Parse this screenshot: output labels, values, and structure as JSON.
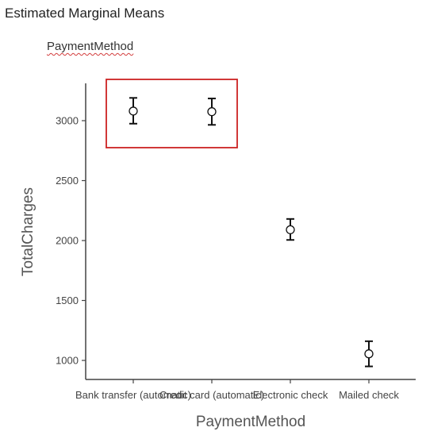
{
  "header": {
    "title": "Estimated Marginal Means",
    "subtitle": "PaymentMethod"
  },
  "colors": {
    "axis": "#444444",
    "error_bar": "#111111",
    "point_fill": "#ffffff",
    "highlight_box": "#cc2222"
  },
  "chart_data": {
    "type": "scatter",
    "xlabel": "PaymentMethod",
    "ylabel": "TotalCharges",
    "categories": [
      "Bank transfer (automatic)",
      "Credit card (automatic)",
      "Electronic check",
      "Mailed check"
    ],
    "series": [
      {
        "means": [
          3080,
          3075,
          2090,
          1055
        ],
        "lower": [
          2975,
          2965,
          2005,
          950
        ],
        "upper": [
          3190,
          3185,
          2180,
          1160
        ]
      }
    ],
    "ylim": [
      850,
      3300
    ],
    "yticks": [
      1000,
      1500,
      2000,
      2500,
      3000
    ],
    "grid": false,
    "annotations": [
      {
        "type": "highlight-box",
        "categories": [
          "Bank transfer (automatic)",
          "Credit card (automatic)"
        ]
      }
    ]
  }
}
